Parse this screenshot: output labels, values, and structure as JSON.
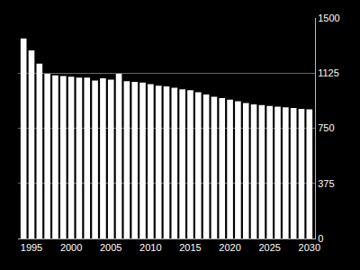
{
  "chart_data": {
    "type": "bar",
    "x": [
      1994,
      1995,
      1996,
      1997,
      1998,
      1999,
      2000,
      2001,
      2002,
      2003,
      2004,
      2005,
      2006,
      2007,
      2008,
      2009,
      2010,
      2011,
      2012,
      2013,
      2014,
      2015,
      2016,
      2017,
      2018,
      2019,
      2020,
      2021,
      2022,
      2023,
      2024,
      2025,
      2026,
      2027,
      2028,
      2029,
      2030
    ],
    "values": [
      1360,
      1280,
      1190,
      1120,
      1110,
      1105,
      1100,
      1095,
      1095,
      1075,
      1090,
      1080,
      1120,
      1070,
      1065,
      1060,
      1050,
      1040,
      1035,
      1025,
      1015,
      1008,
      995,
      980,
      965,
      955,
      945,
      933,
      922,
      912,
      907,
      902,
      897,
      892,
      887,
      882,
      878
    ],
    "color": "#ffffff",
    "xlim": [
      1993.3,
      2030.7
    ],
    "xticks": [
      1995,
      2000,
      2005,
      2010,
      2015,
      2020,
      2025,
      2030
    ],
    "ylim": [
      0,
      1500
    ],
    "yticks": [
      0,
      375,
      750,
      1125,
      1500
    ],
    "grid": true
  }
}
